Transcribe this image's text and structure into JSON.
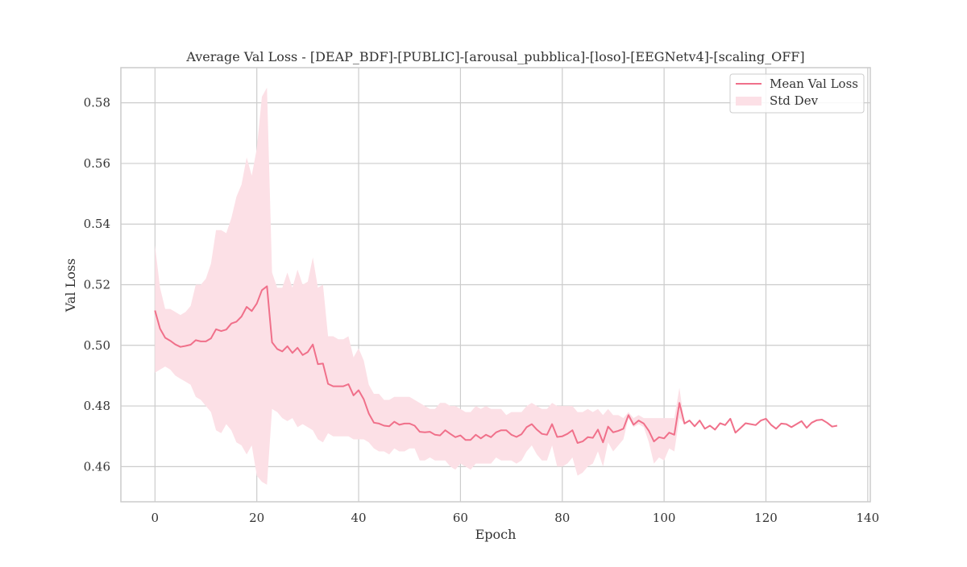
{
  "chart_data": {
    "type": "line",
    "title": "Average Val Loss - [DEAP_BDF]-[PUBLIC]-[arousal_pubblica]-[loso]-[EEGNetv4]-[scaling_OFF]",
    "xlabel": "Epoch",
    "ylabel": "Val Loss",
    "xlim": [
      -6.7,
      140.5
    ],
    "ylim": [
      0.4484,
      0.5916
    ],
    "xticks": [
      0,
      20,
      40,
      60,
      80,
      100,
      120,
      140
    ],
    "xtick_labels": [
      "0",
      "20",
      "40",
      "60",
      "80",
      "100",
      "120",
      "140"
    ],
    "yticks": [
      0.46,
      0.48,
      0.5,
      0.52,
      0.54,
      0.56,
      0.58
    ],
    "ytick_labels": [
      "0.46",
      "0.48",
      "0.50",
      "0.52",
      "0.54",
      "0.56",
      "0.58"
    ],
    "grid": true,
    "legend_position": "top-right",
    "legend": {
      "mean_label": "Mean Val Loss",
      "std_label": "Std Dev"
    },
    "colors": {
      "line": "#f0708a",
      "band": "#fce0e6",
      "grid": "#cccccc",
      "spine": "#cccccc"
    },
    "series": [
      {
        "name": "Mean Val Loss",
        "x": [
          0,
          1,
          2,
          3,
          4,
          5,
          6,
          7,
          8,
          9,
          10,
          11,
          12,
          13,
          14,
          15,
          16,
          17,
          18,
          19,
          20,
          21,
          22,
          23,
          24,
          25,
          26,
          27,
          28,
          29,
          30,
          31,
          32,
          33,
          34,
          35,
          36,
          37,
          38,
          39,
          40,
          41,
          42,
          43,
          44,
          45,
          46,
          47,
          48,
          49,
          50,
          51,
          52,
          53,
          54,
          55,
          56,
          57,
          58,
          59,
          60,
          61,
          62,
          63,
          64,
          65,
          66,
          67,
          68,
          69,
          70,
          71,
          72,
          73,
          74,
          75,
          76,
          77,
          78,
          79,
          80,
          81,
          82,
          83,
          84,
          85,
          86,
          87,
          88,
          89,
          90,
          91,
          92,
          93,
          94,
          95,
          96,
          97,
          98,
          99,
          100,
          101,
          102,
          103,
          104,
          105,
          106,
          107,
          108,
          109,
          110,
          111,
          112,
          113,
          114,
          115,
          116,
          117,
          118,
          119,
          120,
          121,
          122,
          123,
          124,
          125,
          126,
          127,
          128,
          129,
          130,
          131,
          132,
          133,
          134
        ],
        "y": [
          0.5115,
          0.5055,
          0.5025,
          0.5015,
          0.5003,
          0.4995,
          0.4998,
          0.5002,
          0.5017,
          0.5013,
          0.5013,
          0.5023,
          0.5053,
          0.5047,
          0.5052,
          0.5072,
          0.5078,
          0.5095,
          0.5127,
          0.5113,
          0.5138,
          0.5182,
          0.5195,
          0.501,
          0.4988,
          0.498,
          0.4997,
          0.4975,
          0.4992,
          0.4968,
          0.4978,
          0.5003,
          0.4938,
          0.494,
          0.4873,
          0.4865,
          0.4865,
          0.4865,
          0.4872,
          0.4835,
          0.4852,
          0.4822,
          0.4775,
          0.4745,
          0.4742,
          0.4735,
          0.4733,
          0.4748,
          0.4738,
          0.4742,
          0.4742,
          0.4735,
          0.4715,
          0.4713,
          0.4715,
          0.4705,
          0.4703,
          0.472,
          0.4708,
          0.4697,
          0.4703,
          0.4688,
          0.4688,
          0.4705,
          0.4693,
          0.4705,
          0.4697,
          0.4713,
          0.472,
          0.472,
          0.4705,
          0.4698,
          0.4707,
          0.473,
          0.474,
          0.4722,
          0.4708,
          0.4705,
          0.474,
          0.4698,
          0.47,
          0.4708,
          0.472,
          0.4678,
          0.4683,
          0.4697,
          0.4695,
          0.4722,
          0.468,
          0.4732,
          0.4713,
          0.4718,
          0.4725,
          0.477,
          0.4738,
          0.4752,
          0.4742,
          0.4718,
          0.4683,
          0.4697,
          0.4693,
          0.4712,
          0.4705,
          0.481,
          0.4742,
          0.4752,
          0.4733,
          0.4752,
          0.4725,
          0.4735,
          0.4722,
          0.4743,
          0.4737,
          0.4758,
          0.4712,
          0.4727,
          0.4743,
          0.474,
          0.4737,
          0.4752,
          0.4758,
          0.4738,
          0.4725,
          0.4742,
          0.474,
          0.473,
          0.474,
          0.475,
          0.4728,
          0.4745,
          0.4753,
          0.4755,
          0.4745,
          0.4732,
          0.4735
        ]
      },
      {
        "name": "Std Dev",
        "x": [
          0,
          1,
          2,
          3,
          4,
          5,
          6,
          7,
          8,
          9,
          10,
          11,
          12,
          13,
          14,
          15,
          16,
          17,
          18,
          19,
          20,
          21,
          22,
          23,
          24,
          25,
          26,
          27,
          28,
          29,
          30,
          31,
          32,
          33,
          34,
          35,
          36,
          37,
          38,
          39,
          40,
          41,
          42,
          43,
          44,
          45,
          46,
          47,
          48,
          49,
          50,
          51,
          52,
          53,
          54,
          55,
          56,
          57,
          58,
          59,
          60,
          61,
          62,
          63,
          64,
          65,
          66,
          67,
          68,
          69,
          70,
          71,
          72,
          73,
          74,
          75,
          76,
          77,
          78,
          79,
          80,
          81,
          82,
          83,
          84,
          85,
          86,
          87,
          88,
          89,
          90,
          91,
          92,
          93,
          94,
          95,
          96,
          97,
          98,
          99,
          100,
          101,
          102,
          103
        ],
        "upper": [
          0.533,
          0.519,
          0.512,
          0.512,
          0.511,
          0.51,
          0.511,
          0.513,
          0.52,
          0.52,
          0.522,
          0.527,
          0.538,
          0.538,
          0.537,
          0.542,
          0.549,
          0.553,
          0.562,
          0.556,
          0.565,
          0.582,
          0.585,
          0.524,
          0.519,
          0.519,
          0.524,
          0.519,
          0.525,
          0.52,
          0.521,
          0.529,
          0.519,
          0.52,
          0.503,
          0.503,
          0.502,
          0.502,
          0.503,
          0.496,
          0.499,
          0.495,
          0.487,
          0.484,
          0.484,
          0.482,
          0.482,
          0.483,
          0.483,
          0.483,
          0.483,
          0.482,
          0.481,
          0.48,
          0.479,
          0.479,
          0.481,
          0.481,
          0.48,
          0.48,
          0.479,
          0.478,
          0.478,
          0.48,
          0.479,
          0.48,
          0.479,
          0.479,
          0.479,
          0.477,
          0.478,
          0.478,
          0.478,
          0.48,
          0.481,
          0.48,
          0.479,
          0.479,
          0.481,
          0.48,
          0.48,
          0.48,
          0.48,
          0.478,
          0.478,
          0.479,
          0.478,
          0.479,
          0.477,
          0.479,
          0.477,
          0.477,
          0.476,
          0.478,
          0.476,
          0.477,
          0.476,
          0.476,
          0.476,
          0.476,
          0.476,
          0.476,
          0.476,
          0.486
        ],
        "lower": [
          0.491,
          0.492,
          0.493,
          0.492,
          0.49,
          0.489,
          0.488,
          0.487,
          0.483,
          0.482,
          0.48,
          0.478,
          0.472,
          0.471,
          0.474,
          0.472,
          0.468,
          0.467,
          0.464,
          0.467,
          0.457,
          0.455,
          0.454,
          0.479,
          0.478,
          0.476,
          0.475,
          0.476,
          0.473,
          0.474,
          0.473,
          0.472,
          0.469,
          0.468,
          0.471,
          0.47,
          0.47,
          0.47,
          0.47,
          0.469,
          0.469,
          0.469,
          0.468,
          0.466,
          0.465,
          0.465,
          0.464,
          0.466,
          0.465,
          0.465,
          0.466,
          0.466,
          0.462,
          0.462,
          0.463,
          0.462,
          0.462,
          0.462,
          0.46,
          0.459,
          0.461,
          0.46,
          0.459,
          0.461,
          0.461,
          0.461,
          0.461,
          0.463,
          0.462,
          0.462,
          0.462,
          0.461,
          0.462,
          0.465,
          0.467,
          0.464,
          0.462,
          0.462,
          0.467,
          0.46,
          0.46,
          0.461,
          0.463,
          0.457,
          0.458,
          0.46,
          0.461,
          0.465,
          0.46,
          0.468,
          0.465,
          0.467,
          0.469,
          0.476,
          0.473,
          0.474,
          0.473,
          0.468,
          0.461,
          0.463,
          0.462,
          0.466,
          0.465,
          0.476
        ]
      }
    ]
  }
}
